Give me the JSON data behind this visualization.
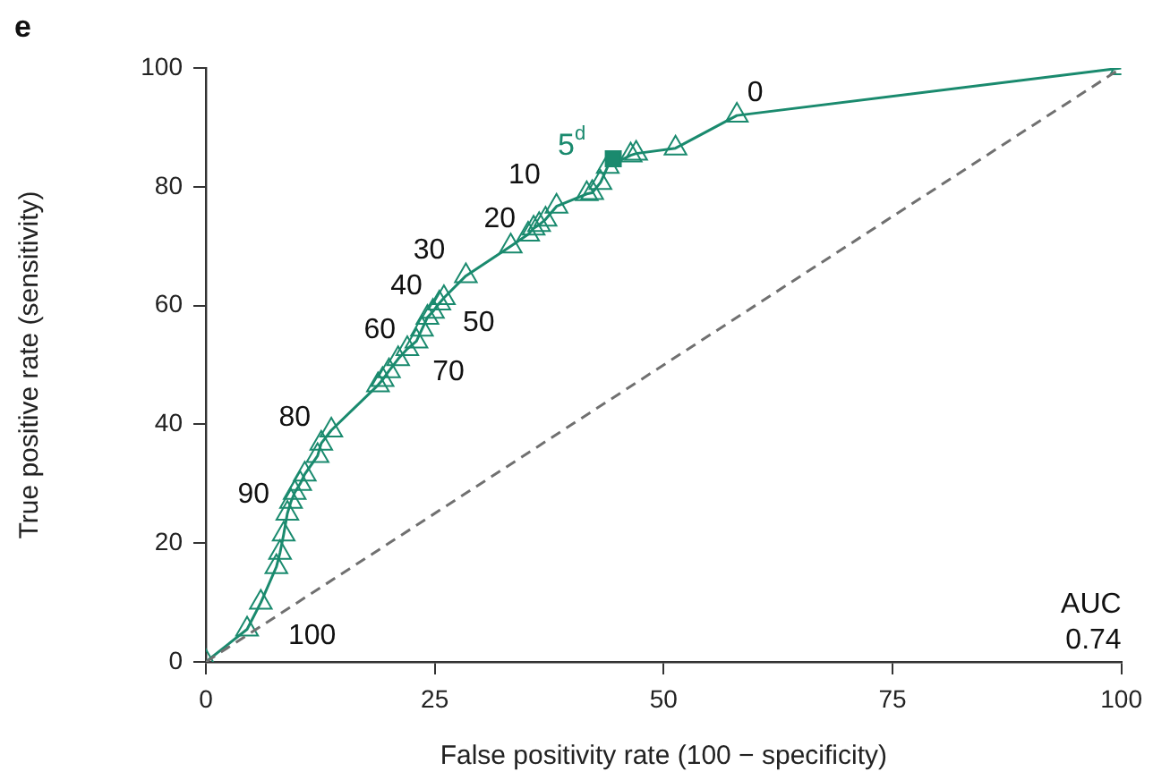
{
  "chart_data": {
    "type": "line",
    "title": "e",
    "xlabel": "False positivity rate (100 − specificity)",
    "ylabel": "True positive rate (sensitivity)",
    "xlim": [
      0,
      100
    ],
    "xticks": [
      0,
      25,
      50,
      75,
      100
    ],
    "ylim": [
      0,
      100
    ],
    "yticks": [
      0,
      20,
      40,
      60,
      80,
      100
    ],
    "grid": false,
    "legend": false,
    "series": [
      {
        "type": "line",
        "color": "#707070",
        "line_style": "dashed",
        "marker": "none",
        "x": [
          0,
          100
        ],
        "values": [
          0,
          100
        ]
      },
      {
        "type": "line",
        "color": "#1a8a6e",
        "marker": "triangle",
        "line_style": "solid",
        "x": [
          0,
          4.5,
          6,
          7.7,
          8.1,
          8.5,
          8.9,
          9.3,
          9.7,
          10.3,
          10.8,
          12.2,
          12.6,
          13.7,
          18.8,
          19.3,
          20,
          21,
          22,
          23,
          23.6,
          24.2,
          24.8,
          25.5,
          26,
          28.4,
          33.3,
          35.2,
          35.8,
          36.4,
          37.1,
          38.3,
          41.6,
          42.2,
          43.1,
          43.9,
          46.4,
          47,
          51.3,
          58,
          100
        ],
        "values": [
          0,
          5.5,
          10,
          16,
          18.4,
          21.5,
          25,
          27,
          28.5,
          30,
          31.6,
          34.7,
          36.8,
          39,
          46.6,
          47.5,
          49,
          51,
          52.7,
          54,
          56,
          58,
          59,
          60.4,
          61.3,
          65,
          70,
          72,
          73,
          73.6,
          74.5,
          76.7,
          78.8,
          79,
          80.7,
          83.4,
          85.3,
          85.6,
          86.5,
          92,
          100
        ]
      },
      {
        "type": "scatter",
        "name": "5$^{d}$",
        "color": "#1a8a6e",
        "marker": "square",
        "x": [
          44.5
        ],
        "values": [
          84.7
        ]
      }
    ],
    "annotations": [
      "0",
      "10",
      "20",
      "30",
      "40",
      "50",
      "60",
      "70",
      "80",
      "90",
      "100",
      "AUC\n0.74"
    ]
  }
}
